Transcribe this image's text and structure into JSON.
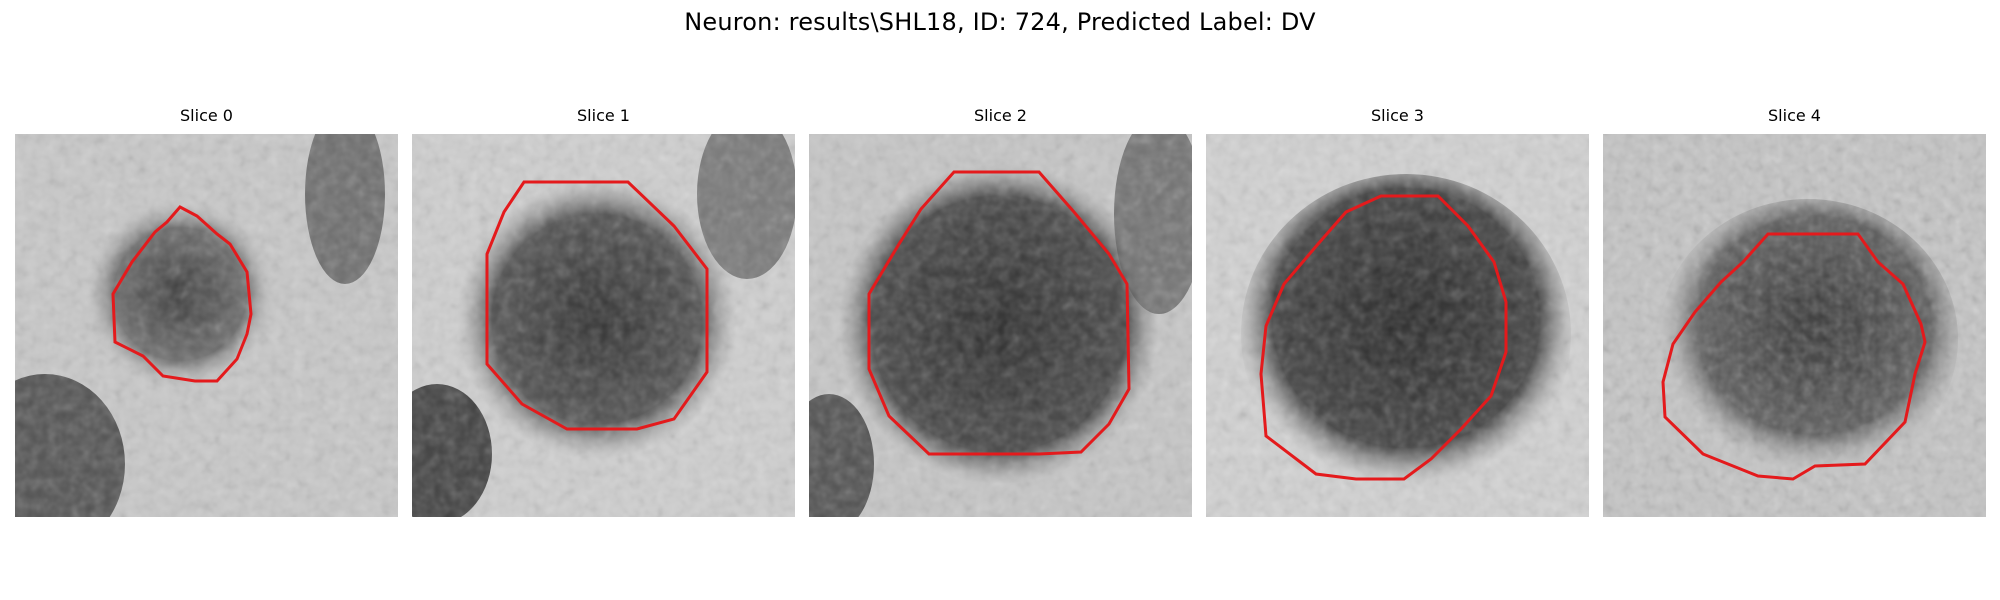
{
  "figure": {
    "title": "Neuron: results\\SHL18, ID: 724, Predicted Label: DV"
  },
  "panels": [
    {
      "title": "Slice 0"
    },
    {
      "title": "Slice 1"
    },
    {
      "title": "Slice 2"
    },
    {
      "title": "Slice 3"
    },
    {
      "title": "Slice 4"
    }
  ],
  "colors": {
    "contour": "#e41a1c",
    "background": "#ffffff"
  }
}
